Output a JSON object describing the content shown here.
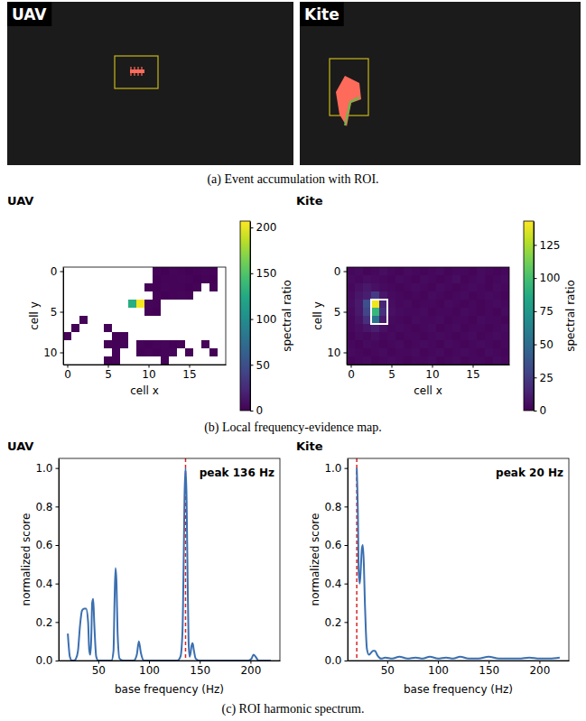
{
  "figure": {
    "captions": [
      "(a) Event accumulation with ROI.",
      "(b) Local frequency-evidence map.",
      "(c) ROI harmonic spectrum."
    ]
  },
  "images": [
    {
      "label": "UAV"
    },
    {
      "label": "Kite"
    }
  ],
  "chart_data": [
    {
      "type": "heatmap",
      "title": "UAV",
      "xlabel": "cell x",
      "ylabel": "cell y",
      "xlim": [
        -0.5,
        19.5
      ],
      "ylim": [
        11.5,
        -0.5
      ],
      "xticks": [
        0,
        5,
        10,
        15
      ],
      "yticks": [
        0,
        5,
        10
      ],
      "cells": [
        [
          null,
          null,
          null,
          null,
          null,
          null,
          null,
          null,
          null,
          null,
          null,
          2,
          1,
          3,
          2,
          1,
          2,
          3,
          2,
          null
        ],
        [
          null,
          null,
          null,
          null,
          null,
          null,
          null,
          null,
          null,
          null,
          null,
          1,
          2,
          2,
          3,
          2,
          1,
          2,
          1,
          null
        ],
        [
          null,
          null,
          null,
          null,
          null,
          null,
          null,
          null,
          null,
          null,
          2,
          1,
          3,
          2,
          2,
          1,
          2,
          null,
          2,
          null
        ],
        [
          null,
          null,
          null,
          null,
          null,
          null,
          null,
          null,
          null,
          null,
          null,
          2,
          1,
          2,
          3,
          2,
          null,
          null,
          null,
          null
        ],
        [
          null,
          null,
          null,
          null,
          null,
          null,
          null,
          null,
          130,
          205,
          3,
          2,
          null,
          null,
          null,
          null,
          null,
          null,
          null,
          null
        ],
        [
          null,
          null,
          null,
          null,
          null,
          null,
          null,
          null,
          null,
          null,
          2,
          1,
          null,
          null,
          null,
          null,
          null,
          null,
          null,
          null
        ],
        [
          null,
          null,
          2,
          null,
          null,
          null,
          null,
          null,
          null,
          null,
          null,
          null,
          null,
          null,
          null,
          null,
          null,
          null,
          null,
          null
        ],
        [
          null,
          1,
          null,
          null,
          null,
          2,
          null,
          null,
          null,
          null,
          null,
          null,
          null,
          null,
          null,
          null,
          null,
          null,
          null,
          null
        ],
        [
          2,
          null,
          null,
          null,
          null,
          null,
          1,
          2,
          null,
          null,
          null,
          null,
          null,
          null,
          null,
          null,
          null,
          null,
          null,
          null
        ],
        [
          null,
          null,
          null,
          null,
          null,
          2,
          1,
          3,
          null,
          2,
          1,
          2,
          3,
          1,
          2,
          null,
          null,
          2,
          null,
          null
        ],
        [
          null,
          null,
          null,
          null,
          null,
          null,
          2,
          null,
          null,
          1,
          2,
          1,
          2,
          3,
          null,
          2,
          null,
          null,
          1,
          null
        ],
        [
          null,
          null,
          null,
          null,
          null,
          1,
          2,
          null,
          null,
          null,
          null,
          null,
          2,
          null,
          null,
          null,
          null,
          null,
          null,
          null
        ]
      ],
      "colorbar": {
        "label": "spectral ratio",
        "range": [
          0,
          207
        ],
        "ticks": [
          0,
          50,
          100,
          150,
          200
        ]
      }
    },
    {
      "type": "heatmap",
      "title": "Kite",
      "xlabel": "cell x",
      "ylabel": "cell y",
      "xlim": [
        -0.5,
        19.5
      ],
      "ylim": [
        11.5,
        -0.5
      ],
      "xticks": [
        0,
        5,
        10,
        15
      ],
      "yticks": [
        0,
        5,
        10
      ],
      "cells": [
        [
          3,
          4,
          2,
          3,
          5,
          3,
          2,
          4,
          3,
          2,
          3,
          4,
          2,
          3,
          3,
          2,
          4,
          3,
          2,
          3
        ],
        [
          4,
          3,
          5,
          4,
          3,
          2,
          4,
          3,
          2,
          4,
          3,
          2,
          3,
          5,
          2,
          3,
          4,
          2,
          3,
          4
        ],
        [
          3,
          6,
          9,
          6,
          4,
          3,
          2,
          3,
          4,
          3,
          2,
          4,
          3,
          2,
          3,
          4,
          3,
          2,
          4,
          3
        ],
        [
          4,
          8,
          12,
          25,
          8,
          4,
          3,
          2,
          3,
          2,
          4,
          3,
          2,
          3,
          4,
          2,
          3,
          4,
          3,
          2
        ],
        [
          5,
          10,
          35,
          140,
          15,
          5,
          3,
          4,
          2,
          3,
          3,
          2,
          4,
          3,
          2,
          3,
          2,
          3,
          4,
          3
        ],
        [
          4,
          9,
          30,
          95,
          20,
          6,
          4,
          3,
          3,
          4,
          2,
          3,
          3,
          2,
          4,
          3,
          2,
          3,
          2,
          4
        ],
        [
          3,
          7,
          20,
          55,
          10,
          4,
          3,
          2,
          4,
          3,
          3,
          4,
          2,
          3,
          3,
          2,
          4,
          3,
          3,
          2
        ],
        [
          3,
          5,
          8,
          12,
          6,
          3,
          4,
          3,
          2,
          3,
          4,
          2,
          3,
          4,
          2,
          3,
          3,
          2,
          3,
          4
        ],
        [
          2,
          4,
          3,
          5,
          3,
          4,
          2,
          3,
          3,
          2,
          3,
          4,
          3,
          2,
          3,
          4,
          2,
          3,
          4,
          3
        ],
        [
          3,
          2,
          4,
          3,
          2,
          3,
          4,
          2,
          3,
          4,
          3,
          2,
          4,
          3,
          2,
          3,
          4,
          3,
          2,
          3
        ],
        [
          4,
          3,
          2,
          3,
          4,
          2,
          3,
          3,
          4,
          2,
          3,
          4,
          2,
          3,
          4,
          3,
          2,
          4,
          3,
          2
        ],
        [
          2,
          3,
          4,
          2,
          3,
          4,
          3,
          2,
          3,
          3,
          4,
          2,
          3,
          4,
          2,
          3,
          3,
          2,
          4,
          3
        ]
      ],
      "roi": {
        "x": [
          2.5,
          4.5
        ],
        "y": [
          3.5,
          6.5
        ]
      },
      "colorbar": {
        "label": "spectral ratio",
        "range": [
          0,
          143
        ],
        "ticks": [
          0,
          25,
          50,
          75,
          100,
          125
        ]
      }
    },
    {
      "type": "line",
      "title": "UAV",
      "xlabel": "base frequency (Hz)",
      "ylabel": "normalized score",
      "xlim": [
        11,
        229
      ],
      "ylim": [
        0,
        1.05
      ],
      "xticks": [
        50,
        100,
        150,
        200
      ],
      "yticks": [
        {
          "value": 0,
          "label": "0.0"
        },
        0.2,
        0.4,
        0.6,
        0.8,
        {
          "value": 1,
          "label": "1.0"
        }
      ],
      "color": "#3b6fb0",
      "x": [
        20,
        22,
        24,
        26,
        28,
        30,
        32,
        34,
        36,
        38,
        40,
        41,
        42,
        43,
        44,
        45,
        46,
        48,
        50,
        55,
        60,
        63,
        65,
        66,
        67,
        68,
        69,
        71,
        75,
        80,
        85,
        88,
        90,
        92,
        95,
        100,
        110,
        120,
        128,
        131,
        133,
        134,
        135,
        136,
        137,
        138,
        139,
        140,
        141,
        142,
        143,
        144,
        146,
        150,
        160,
        170,
        180,
        190,
        198,
        201,
        203,
        205,
        208,
        212,
        216,
        220
      ],
      "values": [
        0.14,
        0.02,
        0,
        0,
        0.01,
        0.05,
        0.18,
        0.26,
        0.27,
        0.27,
        0.2,
        0.06,
        0.03,
        0.1,
        0.3,
        0.32,
        0.2,
        0.02,
        0,
        0,
        0,
        0,
        0.05,
        0.3,
        0.48,
        0.4,
        0.15,
        0.01,
        0,
        0,
        0,
        0.03,
        0.1,
        0.04,
        0,
        0,
        0,
        0,
        0,
        0.02,
        0.15,
        0.45,
        0.85,
        1.0,
        0.85,
        0.45,
        0.1,
        0.02,
        0.04,
        0.08,
        0.09,
        0.06,
        0.01,
        0,
        0,
        0,
        0,
        0,
        0,
        0.01,
        0.03,
        0.02,
        0,
        0,
        0,
        0
      ],
      "annotations": [
        {
          "text": "peak 136 Hz",
          "x": 136
        }
      ]
    },
    {
      "type": "line",
      "title": "Kite",
      "xlabel": "base frequency (Hz)",
      "ylabel": "normalized score",
      "xlim": [
        11,
        229
      ],
      "ylim": [
        0,
        1.05
      ],
      "xticks": [
        50,
        100,
        150,
        200
      ],
      "yticks": [
        {
          "value": 0,
          "label": "0.0"
        },
        0.2,
        0.4,
        0.6,
        0.8,
        {
          "value": 1,
          "label": "1.0"
        }
      ],
      "color": "#3b6fb0",
      "x": [
        20,
        21,
        22,
        23,
        24,
        25,
        26,
        27,
        28,
        29,
        30,
        32,
        34,
        36,
        38,
        40,
        44,
        48,
        55,
        62,
        70,
        78,
        85,
        92,
        100,
        108,
        115,
        122,
        130,
        140,
        150,
        160,
        170,
        180,
        190,
        200,
        210,
        220
      ],
      "values": [
        1.0,
        0.8,
        0.45,
        0.4,
        0.48,
        0.58,
        0.6,
        0.5,
        0.3,
        0.15,
        0.06,
        0.03,
        0.04,
        0.05,
        0.05,
        0.03,
        0.01,
        0.015,
        0.01,
        0.02,
        0.01,
        0.015,
        0.01,
        0.02,
        0.01,
        0.015,
        0.01,
        0.02,
        0.01,
        0.01,
        0.02,
        0.01,
        0.01,
        0.01,
        0.015,
        0.01,
        0.01,
        0.015
      ],
      "annotations": [
        {
          "text": "peak 20 Hz",
          "x": 20
        }
      ]
    }
  ]
}
